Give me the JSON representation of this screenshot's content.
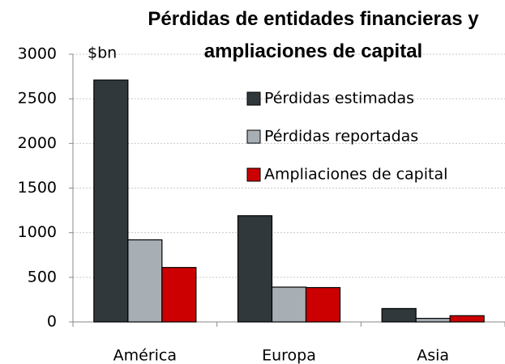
{
  "chart_data": {
    "type": "bar",
    "title": "Pérdidas de entidades financieras y ampliaciones de capital",
    "y_unit_label": "$bn",
    "categories": [
      "América",
      "Europa",
      "Asia"
    ],
    "series": [
      {
        "name": "Pérdidas estimadas",
        "color": "#31383b",
        "values": [
          2710,
          1190,
          150
        ]
      },
      {
        "name": "Pérdidas reportadas",
        "color": "#a7afb4",
        "values": [
          920,
          390,
          40
        ]
      },
      {
        "name": "Ampliaciones de capital",
        "color": "#cc0000",
        "values": [
          610,
          385,
          70
        ]
      }
    ],
    "ylim": [
      0,
      3000
    ],
    "yticks": [
      0,
      500,
      1000,
      1500,
      2000,
      2500,
      3000
    ],
    "grid": true
  }
}
